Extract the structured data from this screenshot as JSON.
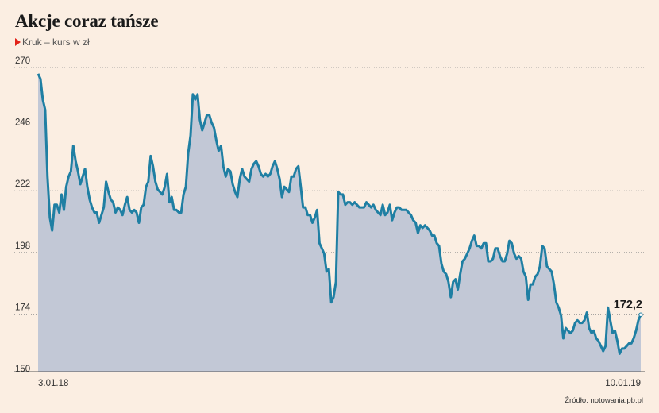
{
  "header": {
    "title": "Akcje coraz tańsze",
    "subtitle": "Kruk – kurs w zł"
  },
  "source": "Źródło: notowania.pb.pl",
  "colors": {
    "background": "#fbeee2",
    "line": "#1f7fa3",
    "area": "#c2c8d6",
    "accent": "#e2231a",
    "grid": "#8a8a8a"
  },
  "icons": {
    "subtitle_marker": "red-triangle-icon"
  },
  "chart_data": {
    "type": "area",
    "title": "Akcje coraz tańsze",
    "subtitle": "Kruk – kurs w zł",
    "xlabel": "",
    "ylabel": "",
    "ylim": [
      150,
      270
    ],
    "yticks": [
      150,
      174,
      198,
      222,
      246,
      270
    ],
    "ytick_labels": [
      "150",
      "174",
      "198",
      "222",
      "246",
      "270"
    ],
    "x_start_label": "3.01.18",
    "x_end_label": "10.01.19",
    "grid": true,
    "last_value_label": "172,2",
    "series": [
      {
        "values": [
          266,
          264,
          256,
          252,
          226,
          210,
          205,
          215,
          215,
          212,
          219,
          213,
          222,
          226,
          228,
          238,
          232,
          228,
          223,
          226,
          229,
          222,
          217,
          214,
          212,
          212,
          208,
          211,
          214,
          224,
          220,
          217,
          216,
          212,
          214,
          213,
          211,
          215,
          218,
          213,
          212,
          213,
          212,
          208,
          214,
          215,
          222,
          224,
          234,
          230,
          224,
          221,
          220,
          219,
          222,
          227,
          216,
          218,
          213,
          213,
          212,
          212,
          219,
          222,
          235,
          242,
          258,
          256,
          258,
          248,
          244,
          247,
          250,
          250,
          247,
          245,
          240,
          236,
          238,
          230,
          226,
          229,
          228,
          223,
          220,
          218,
          225,
          229,
          226,
          225,
          224,
          229,
          231,
          232,
          230,
          227,
          226,
          227,
          226,
          227,
          230,
          232,
          229,
          225,
          218,
          222,
          221,
          220,
          226,
          226,
          229,
          230,
          222,
          214,
          214,
          211,
          211,
          208,
          210,
          213,
          200,
          198,
          196,
          189,
          190,
          177,
          179,
          185,
          220,
          219,
          219,
          215,
          216,
          216,
          215,
          216,
          215,
          214,
          214,
          214,
          216,
          215,
          214,
          215,
          213,
          212,
          211,
          215,
          211,
          212,
          215,
          209,
          212,
          214,
          214,
          213,
          213,
          213,
          212,
          211,
          209,
          208,
          204,
          207,
          206,
          207,
          206,
          205,
          203,
          203,
          200,
          199,
          192,
          189,
          188,
          185,
          179,
          185,
          186,
          182,
          188,
          193,
          194,
          196,
          198,
          201,
          203,
          199,
          199,
          198,
          200,
          200,
          193,
          193,
          194,
          198,
          198,
          195,
          193,
          193,
          196,
          201,
          200,
          196,
          194,
          195,
          194,
          189,
          187,
          178,
          184,
          184,
          187,
          188,
          191,
          199,
          198,
          191,
          190,
          189,
          184,
          177,
          175,
          172,
          163,
          167,
          166,
          165,
          166,
          169,
          170,
          169,
          169,
          170,
          173,
          167,
          165,
          166,
          163,
          162,
          160,
          158,
          160,
          175,
          170,
          165,
          166,
          162,
          157,
          159,
          159,
          160,
          161,
          161,
          163,
          166,
          170,
          172.2
        ]
      }
    ]
  }
}
